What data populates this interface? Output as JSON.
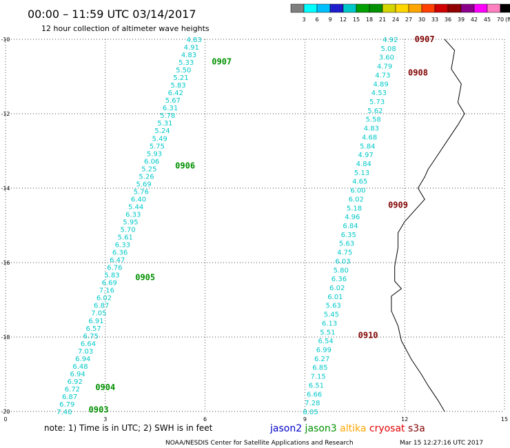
{
  "header": {
    "title": "00:00 – 11:59 UTC 03/14/2017",
    "subtitle": "12 hour collection of altimeter wave heights"
  },
  "legend": {
    "unit": "(ft)",
    "labels": [
      "3",
      "6",
      "9",
      "12",
      "15",
      "18",
      "21",
      "24",
      "27",
      "30",
      "33",
      "36",
      "39",
      "42",
      "45",
      "70"
    ],
    "colors": [
      "#7f7f7f",
      "#00ffff",
      "#00bfff",
      "#1e1ecc",
      "#00c8c8",
      "#00a000",
      "#009000",
      "#d4d400",
      "#ffd700",
      "#ffa500",
      "#ff4000",
      "#d00000",
      "#900000",
      "#8b008b",
      "#ff00ff",
      "#ff80c0",
      "#000000"
    ]
  },
  "axes": {
    "x_ticks": [
      "0",
      "3",
      "6",
      "9",
      "12",
      "15"
    ],
    "y_ticks": [
      "-10",
      "-12",
      "-14",
      "-16",
      "-18",
      "-20"
    ]
  },
  "footer": {
    "note": "note: 1) Time is in UTC; 2) SWH is in feet",
    "satellites": [
      {
        "name": "jason2",
        "color": "#0000cc"
      },
      {
        "name": "jason3",
        "color": "#009000"
      },
      {
        "name": "altika",
        "color": "#ffa500"
      },
      {
        "name": "cryosat",
        "color": "#e00000"
      },
      {
        "name": "s3a",
        "color": "#800000"
      }
    ],
    "credit": "NOAA/NESDIS Center for Satellite Applications and Research",
    "timestamp": "Mar 15 12:27:16 UTC 2017"
  },
  "chart_data": {
    "type": "map-track",
    "xlim": [
      0,
      15
    ],
    "ylim": [
      -20,
      -10
    ],
    "grid": true,
    "tracks": [
      {
        "satellite": "jason3",
        "color": "#00c8c8",
        "label_color": "#009000",
        "start": [
          5.9,
          -10.0
        ],
        "end": [
          2.0,
          -20.0
        ],
        "values": [
          "4.83",
          "4.91",
          "4.83",
          "5.33",
          "5.50",
          "5.21",
          "5.83",
          "6.42",
          "5.67",
          "6.31",
          "5.78",
          "5.31",
          "5.24",
          "5.49",
          "5.75",
          "5.93",
          "6.06",
          "5.25",
          "5.26",
          "5.69",
          "5.76",
          "6.40",
          "5.44",
          "6.33",
          "5.95",
          "5.70",
          "5.61",
          "6.33",
          "6.36",
          "6.47",
          "6.76",
          "5.83",
          "6.69",
          "7.16",
          "6.02",
          "6.87",
          "7.05",
          "6.91",
          "6.57",
          "6.75",
          "6.64",
          "7.03",
          "6.94",
          "6.48",
          "6.94",
          "6.92",
          "6.72",
          "6.87",
          "6.79",
          "7.40"
        ],
        "times": [
          {
            "label": "0907",
            "lon": 6.2,
            "lat": -10.6
          },
          {
            "label": "0906",
            "lon": 5.1,
            "lat": -13.4
          },
          {
            "label": "0905",
            "lon": 3.9,
            "lat": -16.4
          },
          {
            "label": "0904",
            "lon": 2.7,
            "lat": -19.35
          },
          {
            "label": "0903",
            "lon": 2.5,
            "lat": -19.95
          }
        ]
      },
      {
        "satellite": "s3a",
        "color": "#00c8c8",
        "label_color": "#800000",
        "start": [
          11.8,
          -10.0
        ],
        "end": [
          9.4,
          -20.0
        ],
        "values": [
          "4.92",
          "5.08",
          "3.60",
          "4.79",
          "4.73",
          "4.89",
          "4.53",
          "5.73",
          "5.62",
          "5.58",
          "4.83",
          "4.68",
          "5.84",
          "4.97",
          "4.84",
          "5.13",
          "4.65",
          "6.00",
          "6.02",
          "5.18",
          "4.96",
          "6.84",
          "6.35",
          "5.63",
          "4.75",
          "6.03",
          "5.80",
          "6.36",
          "6.02",
          "6.01",
          "5.63",
          "5.45",
          "6.13",
          "5.51",
          "6.54",
          "6.99",
          "6.27",
          "6.85",
          "7.15",
          "6.51",
          "6.66",
          "7.28",
          "8.05"
        ],
        "times": [
          {
            "label": "0907",
            "lon": 12.3,
            "lat": -10.0
          },
          {
            "label": "0908",
            "lon": 12.1,
            "lat": -10.9
          },
          {
            "label": "0909",
            "lon": 11.5,
            "lat": -14.45
          },
          {
            "label": "0910",
            "lon": 10.6,
            "lat": -17.95
          }
        ]
      }
    ],
    "coastline": [
      [
        13.2,
        -10.0
      ],
      [
        13.5,
        -10.3
      ],
      [
        13.4,
        -10.8
      ],
      [
        13.7,
        -11.2
      ],
      [
        13.6,
        -11.7
      ],
      [
        13.8,
        -12.0
      ],
      [
        13.6,
        -12.3
      ],
      [
        13.3,
        -12.7
      ],
      [
        13.0,
        -13.1
      ],
      [
        12.7,
        -13.5
      ],
      [
        12.6,
        -13.7
      ],
      [
        12.4,
        -14.0
      ],
      [
        12.6,
        -14.3
      ],
      [
        12.0,
        -14.9
      ],
      [
        11.8,
        -15.2
      ],
      [
        11.8,
        -15.6
      ],
      [
        11.7,
        -16.1
      ],
      [
        11.7,
        -16.5
      ],
      [
        11.9,
        -16.7
      ],
      [
        11.6,
        -16.9
      ],
      [
        11.6,
        -17.3
      ],
      [
        11.8,
        -17.7
      ],
      [
        11.9,
        -18.1
      ],
      [
        12.2,
        -18.6
      ],
      [
        12.5,
        -19.0
      ],
      [
        12.7,
        -19.3
      ],
      [
        13.0,
        -19.7
      ],
      [
        13.2,
        -20.0
      ]
    ]
  }
}
